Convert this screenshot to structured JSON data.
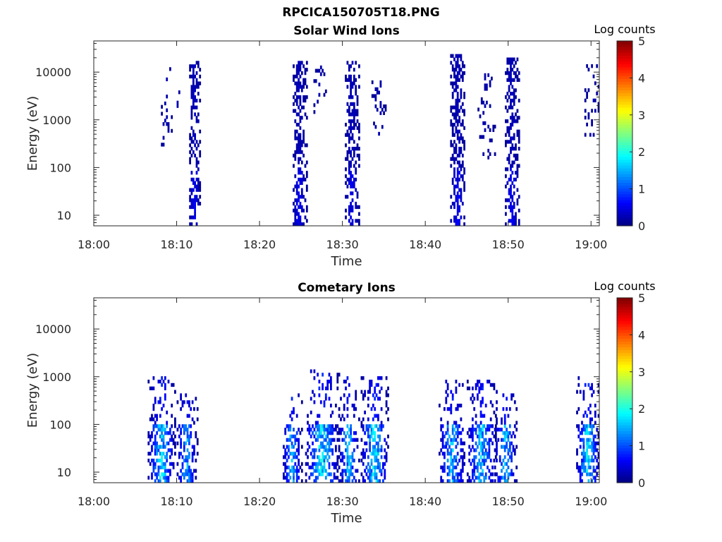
{
  "figure": {
    "title": "RPCICA150705T18.PNG"
  },
  "chart_data": [
    {
      "type": "heatmap",
      "title": "Solar Wind Ions",
      "xlabel": "Time",
      "ylabel": "Energy (eV)",
      "x_ticks": [
        "18:00",
        "18:10",
        "18:20",
        "18:30",
        "18:40",
        "18:50",
        "19:00"
      ],
      "x_range_minutes": [
        0,
        61
      ],
      "y_scale": "log",
      "y_range": [
        6,
        45000
      ],
      "y_ticks": [
        10,
        100,
        1000,
        10000
      ],
      "y_tick_labels": [
        "10",
        "100",
        "1000",
        "10000"
      ],
      "colorbar": {
        "label": "Log counts",
        "range": [
          0,
          5
        ],
        "ticks": [
          "0",
          "1",
          "2",
          "3",
          "4",
          "5"
        ]
      },
      "bursts": [
        {
          "t_start": 8.1,
          "t_end": 9.3,
          "e_min": 280,
          "e_max": 17000,
          "density": 0.18,
          "max_log": 0.5
        },
        {
          "t_start": 9.8,
          "t_end": 10.5,
          "e_min": 150,
          "e_max": 8000,
          "density": 0.1,
          "max_log": 0.4
        },
        {
          "t_start": 11.5,
          "t_end": 12.8,
          "e_min": 6,
          "e_max": 15000,
          "density": 0.55,
          "max_log": 0.6
        },
        {
          "t_start": 24.0,
          "t_end": 25.6,
          "e_min": 6,
          "e_max": 15000,
          "density": 0.5,
          "max_log": 0.6
        },
        {
          "t_start": 26.5,
          "t_end": 28.0,
          "e_min": 500,
          "e_max": 12000,
          "density": 0.15,
          "max_log": 0.4
        },
        {
          "t_start": 30.3,
          "t_end": 32.0,
          "e_min": 6,
          "e_max": 15000,
          "density": 0.5,
          "max_log": 0.6
        },
        {
          "t_start": 33.5,
          "t_end": 35.3,
          "e_min": 400,
          "e_max": 6000,
          "density": 0.15,
          "max_log": 0.4
        },
        {
          "t_start": 43.0,
          "t_end": 44.8,
          "e_min": 6,
          "e_max": 22000,
          "density": 0.55,
          "max_log": 0.6
        },
        {
          "t_start": 46.3,
          "t_end": 48.5,
          "e_min": 150,
          "e_max": 9000,
          "density": 0.15,
          "max_log": 0.4
        },
        {
          "t_start": 49.6,
          "t_end": 51.3,
          "e_min": 6,
          "e_max": 20000,
          "density": 0.55,
          "max_log": 0.6
        },
        {
          "t_start": 59.2,
          "t_end": 61.0,
          "e_min": 450,
          "e_max": 17000,
          "density": 0.2,
          "max_log": 0.4
        }
      ]
    },
    {
      "type": "heatmap",
      "title": "Cometary Ions",
      "xlabel": "Time",
      "ylabel": "Energy (eV)",
      "x_ticks": [
        "18:00",
        "18:10",
        "18:20",
        "18:30",
        "18:40",
        "18:50",
        "19:00"
      ],
      "x_range_minutes": [
        0,
        61
      ],
      "y_scale": "log",
      "y_range": [
        6,
        45000
      ],
      "y_ticks": [
        10,
        100,
        1000,
        10000
      ],
      "y_tick_labels": [
        "10",
        "100",
        "1000",
        "10000"
      ],
      "colorbar": {
        "label": "Log counts",
        "range": [
          0,
          5
        ],
        "ticks": [
          "0",
          "1",
          "2",
          "3",
          "4",
          "5"
        ]
      },
      "bursts": [
        {
          "t_start": 6.5,
          "t_end": 9.8,
          "e_min": 6,
          "e_max": 1000,
          "density": 0.5,
          "max_log": 1.9
        },
        {
          "t_start": 10.0,
          "t_end": 12.4,
          "e_min": 6,
          "e_max": 400,
          "density": 0.45,
          "max_log": 1.6
        },
        {
          "t_start": 22.8,
          "t_end": 25.0,
          "e_min": 6,
          "e_max": 400,
          "density": 0.4,
          "max_log": 1.7
        },
        {
          "t_start": 25.5,
          "t_end": 29.5,
          "e_min": 6,
          "e_max": 1300,
          "density": 0.5,
          "max_log": 2.1
        },
        {
          "t_start": 29.5,
          "t_end": 32.0,
          "e_min": 6,
          "e_max": 900,
          "density": 0.45,
          "max_log": 1.7
        },
        {
          "t_start": 32.2,
          "t_end": 35.5,
          "e_min": 6,
          "e_max": 900,
          "density": 0.5,
          "max_log": 2.0
        },
        {
          "t_start": 41.6,
          "t_end": 44.8,
          "e_min": 6,
          "e_max": 750,
          "density": 0.45,
          "max_log": 1.7
        },
        {
          "t_start": 45.0,
          "t_end": 48.5,
          "e_min": 6,
          "e_max": 750,
          "density": 0.5,
          "max_log": 1.8
        },
        {
          "t_start": 48.3,
          "t_end": 51.0,
          "e_min": 6,
          "e_max": 500,
          "density": 0.45,
          "max_log": 1.7
        },
        {
          "t_start": 58.2,
          "t_end": 61.0,
          "e_min": 6,
          "e_max": 1000,
          "density": 0.5,
          "max_log": 2.0
        }
      ]
    }
  ]
}
